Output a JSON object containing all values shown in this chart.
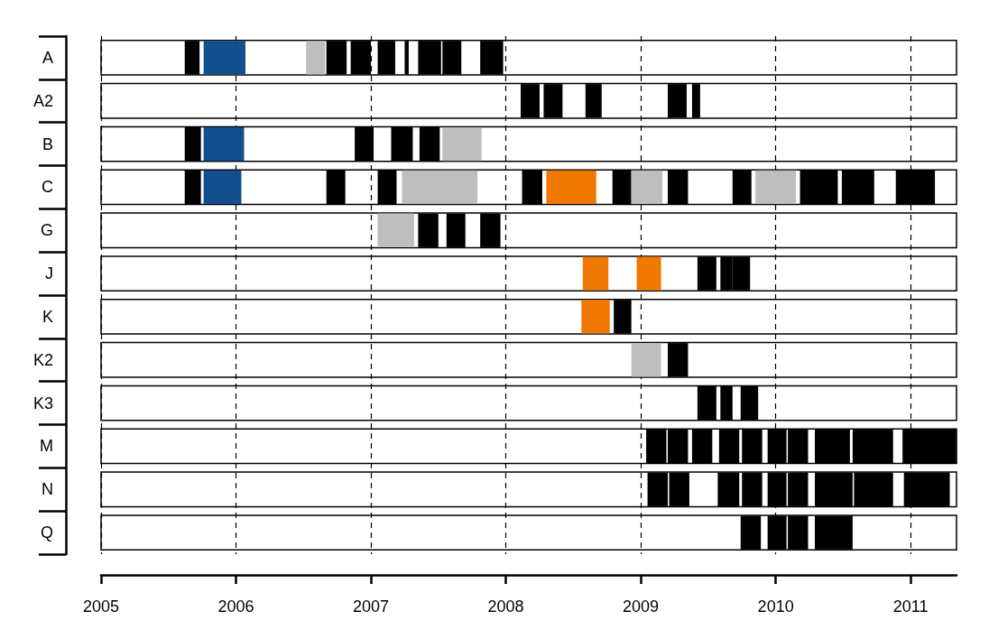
{
  "chart_data": {
    "type": "bar",
    "orientation": "horizontal",
    "categories": [
      "A",
      "A2",
      "B",
      "C",
      "G",
      "J",
      "K",
      "K2",
      "K3",
      "M",
      "N",
      "Q"
    ],
    "xlim": [
      2005,
      2011.34
    ],
    "xticks": [
      2005,
      2006,
      2007,
      2008,
      2009,
      2010,
      2011
    ],
    "grid": "x",
    "series": [
      {
        "base": [
          2005.62,
          2008.11,
          2005.62,
          2005.62,
          2007.05,
          2008.57,
          2008.56,
          2008.93,
          2009.42,
          2009.04,
          2009.05,
          2009.74
        ],
        "values": [
          0.11,
          0.14,
          0.12,
          0.12,
          0.27,
          0.19,
          0.21,
          0.22,
          0.14,
          0.15,
          0.15,
          0.15
        ],
        "colors": [
          "#000000",
          "#000000",
          "#000000",
          "#000000",
          "#bebebe",
          "#ef7800",
          "#ef7800",
          "#bebebe",
          "#000000",
          "#000000",
          "#000000",
          "#000000"
        ]
      },
      {
        "base": [
          2005.76,
          2008.28,
          2005.76,
          2005.76,
          2007.35,
          2008.97,
          2008.8,
          2009.2,
          2009.59,
          2009.2,
          2009.21,
          2009.94
        ],
        "values": [
          0.31,
          0.14,
          0.3,
          0.28,
          0.15,
          0.18,
          0.13,
          0.15,
          0.09,
          0.15,
          0.15,
          0.14
        ],
        "colors": [
          "#134f8c",
          "#000000",
          "#134f8c",
          "#134f8c",
          "#000000",
          "#ef7800",
          "#000000",
          "#000000",
          "#000000",
          "#000000",
          "#000000",
          "#000000"
        ]
      },
      {
        "base": [
          2006.52,
          2008.59,
          2006.88,
          2006.67,
          2007.56,
          2009.42,
          null,
          null,
          2009.74,
          2009.38,
          2009.57,
          2010.09
        ],
        "values": [
          0.14,
          0.12,
          0.14,
          0.14,
          0.14,
          0.14,
          null,
          null,
          0.13,
          0.15,
          0.16,
          0.15
        ],
        "colors": [
          "#bebebe",
          "#000000",
          "#000000",
          "#000000",
          "#000000",
          "#000000",
          null,
          null,
          "#000000",
          "#000000",
          "#000000",
          "#000000"
        ]
      },
      {
        "base": [
          2006.67,
          2009.2,
          2007.15,
          2007.05,
          2007.81,
          2009.59,
          null,
          null,
          null,
          2009.58,
          2009.75,
          2010.29
        ],
        "values": [
          0.15,
          0.14,
          0.16,
          0.14,
          0.15,
          0.09,
          null,
          null,
          null,
          0.15,
          0.15,
          0.28
        ],
        "colors": [
          "#000000",
          "#000000",
          "#000000",
          "#000000",
          "#000000",
          "#000000",
          null,
          null,
          null,
          "#000000",
          "#000000",
          "#000000"
        ]
      },
      {
        "base": [
          2006.85,
          2009.38,
          2007.36,
          2007.23,
          null,
          2009.68,
          null,
          null,
          null,
          2009.75,
          2009.94,
          null
        ],
        "values": [
          0.15,
          0.06,
          0.15,
          0.56,
          null,
          0.13,
          null,
          null,
          null,
          0.15,
          0.14,
          null
        ],
        "colors": [
          "#000000",
          "#000000",
          "#000000",
          "#bebebe",
          null,
          "#000000",
          null,
          null,
          null,
          "#000000",
          "#000000",
          null
        ]
      },
      {
        "base": [
          2007.05,
          null,
          2007.53,
          2008.12,
          null,
          null,
          null,
          null,
          null,
          2009.94,
          2010.09,
          null
        ],
        "values": [
          0.13,
          null,
          0.29,
          0.15,
          null,
          null,
          null,
          null,
          null,
          0.14,
          0.15,
          null
        ],
        "colors": [
          "#000000",
          null,
          "#bebebe",
          "#000000",
          null,
          null,
          null,
          null,
          null,
          "#000000",
          "#000000",
          null
        ]
      },
      {
        "base": [
          2007.25,
          null,
          null,
          2008.3,
          null,
          null,
          null,
          null,
          null,
          2010.09,
          2010.29,
          null
        ],
        "values": [
          0.03,
          null,
          null,
          0.37,
          null,
          null,
          null,
          null,
          null,
          0.15,
          0.28,
          null
        ],
        "colors": [
          "#000000",
          null,
          null,
          "#ef7800",
          null,
          null,
          null,
          null,
          null,
          "#000000",
          "#000000",
          null
        ]
      },
      {
        "base": [
          2007.35,
          null,
          null,
          2008.79,
          null,
          null,
          null,
          null,
          null,
          2010.29,
          2010.58,
          null
        ],
        "values": [
          0.17,
          null,
          null,
          0.14,
          null,
          null,
          null,
          null,
          null,
          0.26,
          0.29,
          null
        ],
        "colors": [
          "#000000",
          null,
          null,
          "#000000",
          null,
          null,
          null,
          null,
          null,
          "#000000",
          "#000000",
          null
        ]
      },
      {
        "base": [
          2007.53,
          null,
          null,
          2008.93,
          null,
          null,
          null,
          null,
          null,
          2010.57,
          2010.95,
          null
        ],
        "values": [
          0.14,
          null,
          null,
          0.23,
          null,
          null,
          null,
          null,
          null,
          0.3,
          0.34,
          null
        ],
        "colors": [
          "#000000",
          null,
          null,
          "#bebebe",
          null,
          null,
          null,
          null,
          null,
          "#000000",
          "#000000",
          null
        ]
      },
      {
        "base": [
          2007.81,
          null,
          null,
          2009.2,
          null,
          null,
          null,
          null,
          null,
          2010.94,
          null,
          null
        ],
        "values": [
          0.17,
          null,
          null,
          0.15,
          null,
          null,
          null,
          null,
          null,
          0.4,
          null,
          null
        ],
        "colors": [
          "#000000",
          null,
          null,
          "#000000",
          null,
          null,
          null,
          null,
          null,
          "#000000",
          null,
          null
        ]
      },
      {
        "base": [
          null,
          null,
          null,
          2009.68,
          null,
          null,
          null,
          null,
          null,
          null,
          null,
          null
        ],
        "values": [
          null,
          null,
          null,
          0.14,
          null,
          null,
          null,
          null,
          null,
          null,
          null,
          null
        ],
        "colors": [
          null,
          null,
          null,
          "#000000",
          null,
          null,
          null,
          null,
          null,
          null,
          null,
          null
        ]
      },
      {
        "base": [
          null,
          null,
          null,
          2009.85,
          null,
          null,
          null,
          null,
          null,
          null,
          null,
          null
        ],
        "values": [
          null,
          null,
          null,
          0.3,
          null,
          null,
          null,
          null,
          null,
          null,
          null,
          null
        ],
        "colors": [
          null,
          null,
          null,
          "#bebebe",
          null,
          null,
          null,
          null,
          null,
          null,
          null,
          null
        ]
      },
      {
        "base": [
          null,
          null,
          null,
          2010.18,
          null,
          null,
          null,
          null,
          null,
          null,
          null,
          null
        ],
        "values": [
          null,
          null,
          null,
          0.28,
          null,
          null,
          null,
          null,
          null,
          null,
          null,
          null
        ],
        "colors": [
          null,
          null,
          null,
          "#000000",
          null,
          null,
          null,
          null,
          null,
          null,
          null,
          null
        ]
      },
      {
        "base": [
          null,
          null,
          null,
          2010.49,
          null,
          null,
          null,
          null,
          null,
          null,
          null,
          null
        ],
        "values": [
          null,
          null,
          null,
          0.24,
          null,
          null,
          null,
          null,
          null,
          null,
          null,
          null
        ],
        "colors": [
          null,
          null,
          null,
          "#000000",
          null,
          null,
          null,
          null,
          null,
          null,
          null,
          null
        ]
      },
      {
        "base": [
          null,
          null,
          null,
          2010.89,
          null,
          null,
          null,
          null,
          null,
          null,
          null,
          null
        ],
        "values": [
          null,
          null,
          null,
          0.29,
          null,
          null,
          null,
          null,
          null,
          null,
          null,
          null
        ],
        "colors": [
          null,
          null,
          null,
          "#000000",
          null,
          null,
          null,
          null,
          null,
          null,
          null,
          null
        ]
      }
    ]
  }
}
